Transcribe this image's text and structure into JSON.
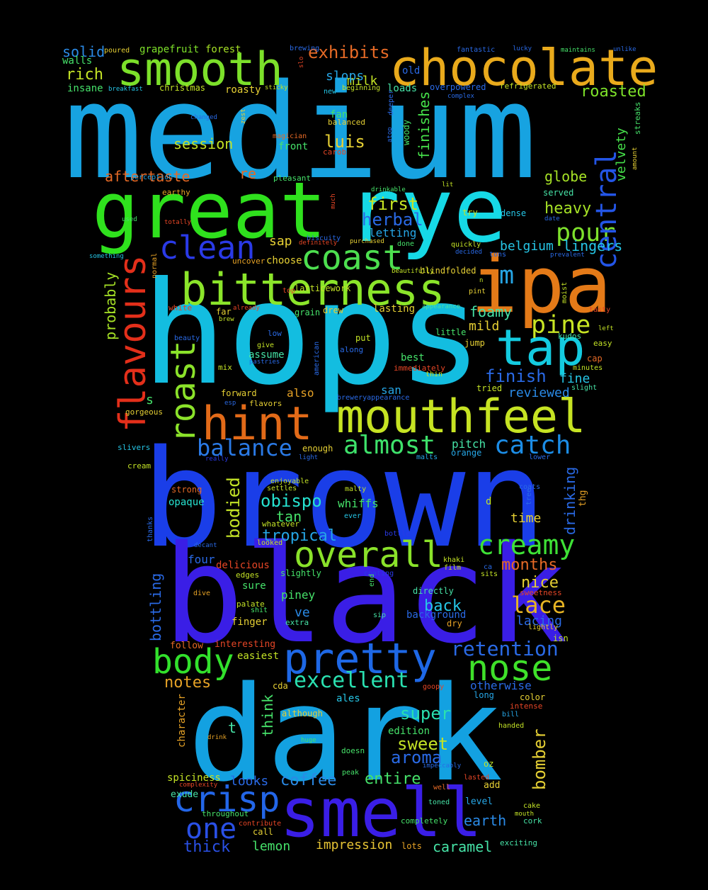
{
  "words": [
    {
      "text": "medium",
      "color": "#17a3e1"
    },
    {
      "text": "hops",
      "color": "#13bde0"
    },
    {
      "text": "brown",
      "color": "#1a3ee8"
    },
    {
      "text": "black",
      "color": "#3a1ee6"
    },
    {
      "text": "dark",
      "color": "#13a1e1"
    },
    {
      "text": "rye",
      "color": "#16d9e6"
    },
    {
      "text": "great",
      "color": "#2fe11d"
    },
    {
      "text": "ipa",
      "color": "#e47a18"
    },
    {
      "text": "chocolate",
      "color": "#e9aa1c"
    },
    {
      "text": "smooth",
      "color": "#7ce02a"
    },
    {
      "text": "bitterness",
      "color": "#8be52a"
    },
    {
      "text": "mouthfeel",
      "color": "#c6e323"
    },
    {
      "text": "smell",
      "color": "#3a1ee6"
    },
    {
      "text": "hint",
      "color": "#e26a18"
    },
    {
      "text": "tap",
      "color": "#14cbe0"
    },
    {
      "text": "pretty",
      "color": "#1e68e6"
    },
    {
      "text": "coast",
      "color": "#4ddf4f"
    },
    {
      "text": "clean",
      "color": "#2a3ae7"
    },
    {
      "text": "flavours",
      "color": "#e32f1a"
    },
    {
      "text": "roast",
      "color": "#8be22a"
    },
    {
      "text": "overall",
      "color": "#8ae22a"
    },
    {
      "text": "body",
      "color": "#32e12c"
    },
    {
      "text": "nose",
      "color": "#3fe12a"
    },
    {
      "text": "crisp",
      "color": "#2366e8"
    },
    {
      "text": "pour",
      "color": "#7ee12c"
    },
    {
      "text": "pine",
      "color": "#c8e524"
    },
    {
      "text": "central",
      "color": "#2355e6"
    },
    {
      "text": "creamy",
      "color": "#3ee236"
    },
    {
      "text": "one",
      "color": "#2a50e6"
    },
    {
      "text": "balance",
      "color": "#2a7ae6"
    },
    {
      "text": "almost",
      "color": "#3ee26b"
    },
    {
      "text": "catch",
      "color": "#1c8de6"
    },
    {
      "text": "excellent",
      "color": "#2ae0b0"
    },
    {
      "text": "lace",
      "color": "#e6b424"
    },
    {
      "text": "retention",
      "color": "#2a6ae6"
    },
    {
      "text": "m",
      "color": "#26a6e6"
    },
    {
      "text": "exhibits",
      "color": "#e66a26"
    },
    {
      "text": "aroma",
      "color": "#2a6ae6"
    },
    {
      "text": "sweet",
      "color": "#c3e226"
    },
    {
      "text": "super",
      "color": "#2ae0b0"
    },
    {
      "text": "bodied",
      "color": "#c3e226"
    },
    {
      "text": "obispo",
      "color": "#26e2d0"
    },
    {
      "text": "tropical",
      "color": "#26a6e6"
    },
    {
      "text": "finishes",
      "color": "#46e24a"
    },
    {
      "text": "finish",
      "color": "#2a6ae6"
    },
    {
      "text": "first",
      "color": "#c8e524"
    },
    {
      "text": "herbal",
      "color": "#2a6ae6"
    },
    {
      "text": "luis",
      "color": "#e6d034"
    },
    {
      "text": "session",
      "color": "#c3e226"
    },
    {
      "text": "aftertaste",
      "color": "#e66a26"
    },
    {
      "text": "rich",
      "color": "#c3e226"
    },
    {
      "text": "solid",
      "color": "#2a8ae6"
    },
    {
      "text": "roasted",
      "color": "#7ee22a"
    },
    {
      "text": "globe",
      "color": "#a6e226"
    },
    {
      "text": "heavy",
      "color": "#a6e226"
    },
    {
      "text": "lingers",
      "color": "#26c6e6"
    },
    {
      "text": "belgium",
      "color": "#26c6e6"
    },
    {
      "text": "probably",
      "color": "#a6e226"
    },
    {
      "text": "drinking",
      "color": "#2a6ae6"
    },
    {
      "text": "months",
      "color": "#e66a26"
    },
    {
      "text": "nice",
      "color": "#e6d034"
    },
    {
      "text": "back",
      "color": "#26c6e6"
    },
    {
      "text": "bottling",
      "color": "#2a6ae6"
    },
    {
      "text": "bomber",
      "color": "#e6d034"
    },
    {
      "text": "entire",
      "color": "#46e26a"
    },
    {
      "text": "coffee",
      "color": "#2a8ae6"
    },
    {
      "text": "lemon",
      "color": "#46e26a"
    },
    {
      "text": "caramel",
      "color": "#46e2a6"
    },
    {
      "text": "impression",
      "color": "#e6c434"
    },
    {
      "text": "thick",
      "color": "#2a50e6"
    },
    {
      "text": "earth",
      "color": "#2a8ae6"
    },
    {
      "text": "think",
      "color": "#46e26a"
    },
    {
      "text": "notes",
      "color": "#e6a226"
    },
    {
      "text": "foamy",
      "color": "#46e2a6"
    },
    {
      "text": "velvety",
      "color": "#46e24a"
    },
    {
      "text": "mild",
      "color": "#e6d034"
    },
    {
      "text": "milk",
      "color": "#c3e226"
    },
    {
      "text": "slops",
      "color": "#26a6e6"
    },
    {
      "text": "sap",
      "color": "#e6d034"
    },
    {
      "text": "letting",
      "color": "#26a6e6"
    },
    {
      "text": "reviewed",
      "color": "#2a8ae6"
    },
    {
      "text": "tan",
      "color": "#46e26a"
    },
    {
      "text": "whiffs",
      "color": "#46e26a"
    },
    {
      "text": "time",
      "color": "#e6d034"
    },
    {
      "text": "four",
      "color": "#2a6ae6"
    },
    {
      "text": "piney",
      "color": "#46e26a"
    },
    {
      "text": "lacing",
      "color": "#2a6ae6"
    },
    {
      "text": "looks",
      "color": "#2a6ae6"
    },
    {
      "text": "spiciness",
      "color": "#c3e226"
    },
    {
      "text": "otherwise",
      "color": "#2a6ae6"
    },
    {
      "text": "fine",
      "color": "#26c6e6"
    },
    {
      "text": "pitch",
      "color": "#46e2a6"
    },
    {
      "text": "re",
      "color": "#e66a26"
    },
    {
      "text": "s",
      "color": "#46e26a"
    },
    {
      "text": "t",
      "color": "#46e2a6"
    },
    {
      "text": "ve",
      "color": "#2a8ae6"
    },
    {
      "text": "grapefruit",
      "color": "#7ee22a"
    },
    {
      "text": "forest",
      "color": "#a6e226"
    },
    {
      "text": "walls",
      "color": "#46e26a"
    },
    {
      "text": "insane",
      "color": "#46e26a"
    },
    {
      "text": "christmas",
      "color": "#c3e226"
    },
    {
      "text": "roasty",
      "color": "#e6d034"
    },
    {
      "text": "loads",
      "color": "#46e2a6"
    },
    {
      "text": "old",
      "color": "#2a6ae6"
    },
    {
      "text": "fan",
      "color": "#46e26a"
    },
    {
      "text": "balanced",
      "color": "#e6d034"
    },
    {
      "text": "front",
      "color": "#46e26a"
    },
    {
      "text": "woody",
      "color": "#46e26a"
    },
    {
      "text": "pleasant",
      "color": "#46e26a"
    },
    {
      "text": "choose",
      "color": "#e6d034"
    },
    {
      "text": "latticework",
      "color": "#c3e226"
    },
    {
      "text": "blindfolded",
      "color": "#e6d034"
    },
    {
      "text": "lasting",
      "color": "#e6d034"
    },
    {
      "text": "grain",
      "color": "#46e26a"
    },
    {
      "text": "drew",
      "color": "#e6d034"
    },
    {
      "text": "far",
      "color": "#e6d034"
    },
    {
      "text": "assume",
      "color": "#46e2a6"
    },
    {
      "text": "put",
      "color": "#c3e226"
    },
    {
      "text": "best",
      "color": "#46e26a"
    },
    {
      "text": "san",
      "color": "#26a6e6"
    },
    {
      "text": "also",
      "color": "#e6a226"
    },
    {
      "text": "forward",
      "color": "#e6d034"
    },
    {
      "text": "gorgeous",
      "color": "#e6d034"
    },
    {
      "text": "enough",
      "color": "#e6d034"
    },
    {
      "text": "orange",
      "color": "#26a6e6"
    },
    {
      "text": "jump",
      "color": "#e6d034"
    },
    {
      "text": "tried",
      "color": "#c3e226"
    },
    {
      "text": "cap",
      "color": "#e66a26"
    },
    {
      "text": "dense",
      "color": "#26c6e6"
    },
    {
      "text": "served",
      "color": "#46e2a6"
    },
    {
      "text": "sure",
      "color": "#46e26a"
    },
    {
      "text": "slightly",
      "color": "#46e26a"
    },
    {
      "text": "delicious",
      "color": "#e64626"
    },
    {
      "text": "finger",
      "color": "#e6d034"
    },
    {
      "text": "interesting",
      "color": "#e64626"
    },
    {
      "text": "follow",
      "color": "#e66a26"
    },
    {
      "text": "easiest",
      "color": "#c3e226"
    },
    {
      "text": "directly",
      "color": "#46e2a6"
    },
    {
      "text": "background",
      "color": "#2a6ae6"
    },
    {
      "text": "edition",
      "color": "#46e26a"
    },
    {
      "text": "cda",
      "color": "#e6d034"
    },
    {
      "text": "ales",
      "color": "#26c6e6"
    },
    {
      "text": "although",
      "color": "#e6d034"
    },
    {
      "text": "character",
      "color": "#e6a226"
    },
    {
      "text": "exude",
      "color": "#46e2a6"
    },
    {
      "text": "throughout",
      "color": "#46e26a"
    },
    {
      "text": "call",
      "color": "#e6d034"
    },
    {
      "text": "lots",
      "color": "#e6a226"
    },
    {
      "text": "add",
      "color": "#e6d034"
    },
    {
      "text": "level",
      "color": "#26a6e6"
    },
    {
      "text": "cork",
      "color": "#46e2a6"
    },
    {
      "text": "completely",
      "color": "#46e26a"
    },
    {
      "text": "opaque",
      "color": "#26e2d0"
    },
    {
      "text": "whatever",
      "color": "#c3e226"
    },
    {
      "text": "enjoyable",
      "color": "#c3e226"
    },
    {
      "text": "malty",
      "color": "#c3e226"
    },
    {
      "text": "ever",
      "color": "#26c6e6"
    },
    {
      "text": "d",
      "color": "#c3e226"
    },
    {
      "text": "thg",
      "color": "#e6a226"
    },
    {
      "text": "isn",
      "color": "#c3e226"
    },
    {
      "text": "dry",
      "color": "#e6a226"
    },
    {
      "text": "color",
      "color": "#e6d034"
    },
    {
      "text": "long",
      "color": "#26a6e6"
    },
    {
      "text": "intense",
      "color": "#e64626"
    },
    {
      "text": "bill",
      "color": "#26a6e6"
    },
    {
      "text": "handed",
      "color": "#c3e226"
    },
    {
      "text": "oz",
      "color": "#c3e226"
    },
    {
      "text": "lasted",
      "color": "#e64626"
    },
    {
      "text": "well",
      "color": "#e66a26"
    },
    {
      "text": "cake",
      "color": "#c3e226"
    },
    {
      "text": "mouth",
      "color": "#c3e226"
    },
    {
      "text": "exciting",
      "color": "#46e2a6"
    },
    {
      "text": "toned",
      "color": "#46e2a6"
    },
    {
      "text": "peak",
      "color": "#46e26a"
    },
    {
      "text": "impeccably",
      "color": "#2a6ae6"
    },
    {
      "text": "doesn",
      "color": "#46e26a"
    },
    {
      "text": "huge",
      "color": "#46e26a"
    },
    {
      "text": "drink",
      "color": "#e6a226"
    },
    {
      "text": "contribute",
      "color": "#e64626"
    },
    {
      "text": "complexity",
      "color": "#e64626"
    },
    {
      "text": "goopy",
      "color": "#e64626"
    },
    {
      "text": "khaki",
      "color": "#c3e226"
    },
    {
      "text": "film",
      "color": "#c3e226"
    },
    {
      "text": "ca",
      "color": "#2a6ae6"
    },
    {
      "text": "sits",
      "color": "#c3e226"
    },
    {
      "text": "sweetness",
      "color": "#e64626"
    },
    {
      "text": "lightly",
      "color": "#e6d034"
    },
    {
      "text": "coating",
      "color": "#2a3ae6"
    },
    {
      "text": "end",
      "color": "#46e26a"
    },
    {
      "text": "sip",
      "color": "#46e2a6"
    },
    {
      "text": "extra",
      "color": "#46e2a6"
    },
    {
      "text": "shit",
      "color": "#46e26a"
    },
    {
      "text": "palate",
      "color": "#c3e226"
    },
    {
      "text": "edges",
      "color": "#c3e226"
    },
    {
      "text": "dive",
      "color": "#e6a226"
    },
    {
      "text": "decant",
      "color": "#2a6ae6"
    },
    {
      "text": "looked",
      "color": "#c3e226"
    },
    {
      "text": "bottle",
      "color": "#2a3ae6"
    },
    {
      "text": "settles",
      "color": "#c3e226"
    },
    {
      "text": "light",
      "color": "#2a6ae6"
    },
    {
      "text": "malts",
      "color": "#26a6e6"
    },
    {
      "text": "lower",
      "color": "#2a6ae6"
    },
    {
      "text": "coats",
      "color": "#2a6ae6"
    },
    {
      "text": "tree",
      "color": "#2a6ae6"
    },
    {
      "text": "strong",
      "color": "#e66a26"
    },
    {
      "text": "thanks",
      "color": "#2a6ae6"
    },
    {
      "text": "cream",
      "color": "#c3e226"
    },
    {
      "text": "slivers",
      "color": "#26c6e6"
    },
    {
      "text": "really",
      "color": "#2a3ae6"
    },
    {
      "text": "esp",
      "color": "#2a6ae6"
    },
    {
      "text": "flavors",
      "color": "#e6d034"
    },
    {
      "text": "breweryappearance",
      "color": "#2a6ae6"
    },
    {
      "text": "pastries",
      "color": "#2a6ae6"
    },
    {
      "text": "mix",
      "color": "#c3e226"
    },
    {
      "text": "give",
      "color": "#c3e226"
    },
    {
      "text": "beauty",
      "color": "#2a6ae6"
    },
    {
      "text": "low",
      "color": "#2a6ae6"
    },
    {
      "text": "american",
      "color": "#2a6ae6"
    },
    {
      "text": "along",
      "color": "#2a6ae6"
    },
    {
      "text": "immediately",
      "color": "#e64626"
    },
    {
      "text": "thin",
      "color": "#c3e226"
    },
    {
      "text": "little",
      "color": "#46e26a"
    },
    {
      "text": "kudos",
      "color": "#46e2a6"
    },
    {
      "text": "easy",
      "color": "#c3e226"
    },
    {
      "text": "minutes",
      "color": "#c3e226"
    },
    {
      "text": "slight",
      "color": "#46e2a6"
    },
    {
      "text": "left",
      "color": "#c3e226"
    },
    {
      "text": "tasty",
      "color": "#e64626"
    },
    {
      "text": "brew",
      "color": "#c3e226"
    },
    {
      "text": "already",
      "color": "#e64626"
    },
    {
      "text": "white",
      "color": "#e64626"
    },
    {
      "text": "top",
      "color": "#e64626"
    },
    {
      "text": "appearance",
      "color": "#46e2a6"
    },
    {
      "text": "pint",
      "color": "#e6d034"
    },
    {
      "text": "n",
      "color": "#c3e226"
    },
    {
      "text": "moist",
      "color": "#c3e226"
    },
    {
      "text": "beautifully",
      "color": "#c3e226"
    },
    {
      "text": "uncover",
      "color": "#e6a226"
    },
    {
      "text": "normal",
      "color": "#e6a226"
    },
    {
      "text": "something",
      "color": "#26c6e6"
    },
    {
      "text": "used",
      "color": "#46e26a"
    },
    {
      "text": "totally",
      "color": "#e64626"
    },
    {
      "text": "earthy",
      "color": "#e6a226"
    },
    {
      "text": "perception",
      "color": "#26a6e6"
    },
    {
      "text": "magician",
      "color": "#e66a26"
    },
    {
      "text": "carob",
      "color": "#e64626"
    },
    {
      "text": "changed",
      "color": "#2a6ae6"
    },
    {
      "text": "zest",
      "color": "#e6d034"
    },
    {
      "text": "much",
      "color": "#e64626"
    },
    {
      "text": "drinkable",
      "color": "#46e26a"
    },
    {
      "text": "lit",
      "color": "#c3e226"
    },
    {
      "text": "biscuity",
      "color": "#2a6ae6"
    },
    {
      "text": "definitely",
      "color": "#e64626"
    },
    {
      "text": "purchased",
      "color": "#e6d034"
    },
    {
      "text": "done",
      "color": "#46e26a"
    },
    {
      "text": "quickly",
      "color": "#c3e226"
    },
    {
      "text": "decided",
      "color": "#2a6ae6"
    },
    {
      "text": "tons",
      "color": "#2a6ae6"
    },
    {
      "text": "try",
      "color": "#c3e226"
    },
    {
      "text": "prevalent",
      "color": "#2a6ae6"
    },
    {
      "text": "date",
      "color": "#2a6ae6"
    },
    {
      "text": "amount",
      "color": "#e6d034"
    },
    {
      "text": "streaks",
      "color": "#46e26a"
    },
    {
      "text": "complex",
      "color": "#2a6ae6"
    },
    {
      "text": "overpowered",
      "color": "#2a6ae6"
    },
    {
      "text": "refrigerated",
      "color": "#c3e226"
    },
    {
      "text": "beginning",
      "color": "#c3e226"
    },
    {
      "text": "new",
      "color": "#26c6e6"
    },
    {
      "text": "deeper",
      "color": "#2a6ae6"
    },
    {
      "text": "atop",
      "color": "#2a6ae6"
    },
    {
      "text": "sticky",
      "color": "#c3e226"
    },
    {
      "text": "breakfast",
      "color": "#26c6e6"
    },
    {
      "text": "poured",
      "color": "#e6d034"
    },
    {
      "text": "brewing",
      "color": "#2a6ae6"
    },
    {
      "text": "slo",
      "color": "#e64626"
    },
    {
      "text": "fantastic",
      "color": "#2a6ae6"
    },
    {
      "text": "lucky",
      "color": "#2a6ae6"
    },
    {
      "text": "maintains",
      "color": "#46e26a"
    },
    {
      "text": "unlike",
      "color": "#2a6ae6"
    }
  ]
}
